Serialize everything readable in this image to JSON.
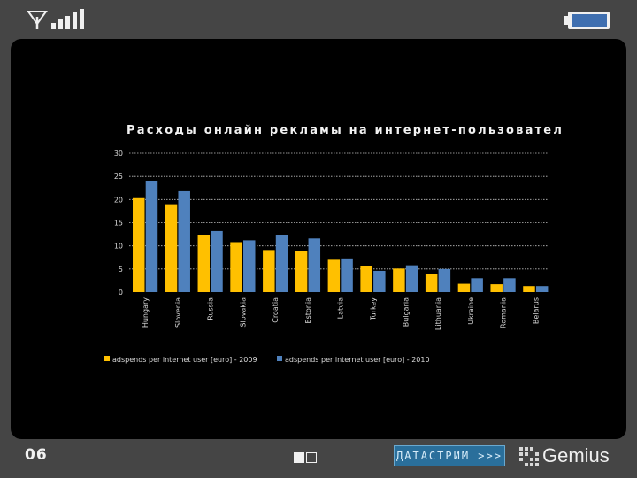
{
  "slide": {
    "page_number": "06",
    "datastream_label": "ДАТАСТРИМ >>>",
    "gemius_label": "Gemius"
  },
  "colors": {
    "frame": "#454545",
    "screen": "#000000",
    "series_2009": "#FFC000",
    "series_2010": "#4F81BD"
  },
  "chart_data": {
    "type": "bar",
    "title": "Расходы онлайн рекламы на интернет-пользовател",
    "xlabel": "",
    "ylabel": "",
    "ylim": [
      0,
      30
    ],
    "yticks": [
      "0",
      "5",
      "10",
      "15",
      "20",
      "25",
      "30"
    ],
    "grid": true,
    "legend_position": "bottom",
    "categories": [
      "Hungary",
      "Slovenia",
      "Russia",
      "Slovakia",
      "Croatia",
      "Estonia",
      "Latvia",
      "Turkey",
      "Bulgaria",
      "Lithuania",
      "Ukraine",
      "Romania",
      "Belarus"
    ],
    "series": [
      {
        "name": "adspends per internet user [euro] - 2009",
        "color": "#FFC000",
        "values": [
          20.3,
          18.8,
          12.3,
          10.8,
          9.1,
          8.9,
          7.0,
          5.6,
          5.1,
          3.9,
          1.8,
          1.7,
          1.3
        ]
      },
      {
        "name": "adspends per internet user [euro] - 2010",
        "color": "#4F81BD",
        "values": [
          24.0,
          21.8,
          13.2,
          11.2,
          12.4,
          11.6,
          7.1,
          4.6,
          5.8,
          5.0,
          3.0,
          3.0,
          1.3
        ]
      }
    ]
  }
}
